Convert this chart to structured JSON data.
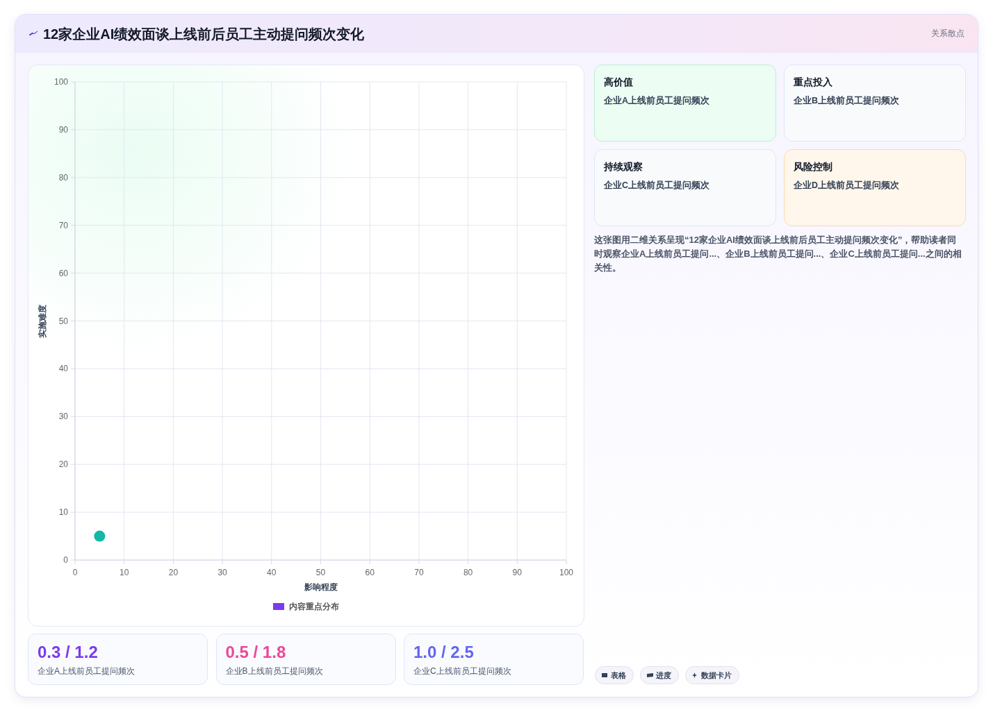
{
  "chart_data": {
    "type": "scatter",
    "title": "12家企业AI绩效面谈上线前后员工主动提问频次变化",
    "subtitle": "关系散点",
    "xlabel": "影响程度",
    "ylabel": "实施难度",
    "xlim": [
      0,
      100
    ],
    "ylim": [
      0,
      100
    ],
    "xticks": [
      0,
      10,
      20,
      30,
      40,
      50,
      60,
      70,
      80,
      90,
      100
    ],
    "yticks": [
      0,
      10,
      20,
      30,
      40,
      50,
      60,
      70,
      80,
      90,
      100
    ],
    "grid": true,
    "legend": "bottom",
    "marker": "circle",
    "series": [
      {
        "name": "内容重点分布",
        "color": "#7c3aed",
        "colors": [
          "#14b8a6"
        ],
        "x": [
          5
        ],
        "values": [
          5
        ]
      }
    ],
    "annotations": [
      "高价值",
      "企业A上线前员工提问频次",
      "重点投入",
      "企业B上线前员工提问频次",
      "持续观察",
      "企业C上线前员工提问频次",
      "风险控制",
      "企业D上线前员工提问频次",
      "这张图用二维关系呈现“12家企业AI绩效面谈上线前后员工主动提问频次变化”，帮助读者同时观察企业A上线前员工提问...、企业B上线前员工提问...、企业C上线前员工提问...之间的相关性。",
      "0.3 / 1.2",
      "企业A上线前员工提问频次",
      "0.5 / 1.8",
      "企业B上线前员工提问频次",
      "1.0 / 2.5",
      "企业C上线前员工提问频次",
      "表格",
      "进度",
      "数据卡片"
    ]
  }
}
